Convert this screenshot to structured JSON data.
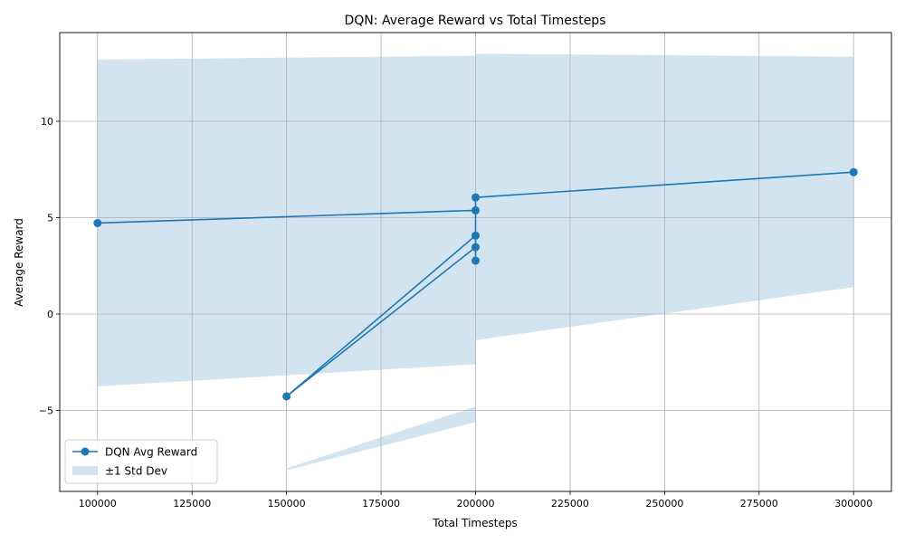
{
  "chart_data": {
    "type": "line",
    "title": "DQN: Average Reward vs Total Timesteps",
    "xlabel": "Total Timesteps",
    "ylabel": "Average Reward",
    "xlim": [
      90000,
      310000
    ],
    "ylim": [
      -9.2,
      14.6
    ],
    "xticks": [
      100000,
      125000,
      150000,
      175000,
      200000,
      225000,
      250000,
      275000,
      300000
    ],
    "yticks": [
      -5,
      0,
      5,
      10
    ],
    "grid": true,
    "legend_position": "bottom-left",
    "colors": {
      "line": "#1f77b4",
      "band": "#1f77b4"
    },
    "series": [
      {
        "name": "DQN Avg Reward",
        "points": [
          {
            "x": 100000,
            "y": 4.72
          },
          {
            "x": 200000,
            "y": 5.38
          },
          {
            "x": 200000,
            "y": 4.07
          },
          {
            "x": 150000,
            "y": -4.27
          },
          {
            "x": 200000,
            "y": 3.47
          },
          {
            "x": 200000,
            "y": 2.77
          },
          {
            "x": 200000,
            "y": 6.05
          },
          {
            "x": 300000,
            "y": 7.36
          }
        ]
      }
    ],
    "band": {
      "name": "±1 Std Dev",
      "segments": [
        {
          "x": [
            100000,
            200000,
            200000
          ],
          "upper": [
            13.2,
            13.4,
            13.4
          ],
          "lower": [
            -3.75,
            -2.6,
            -2.6
          ]
        },
        {
          "x": [
            150000,
            200000,
            200000
          ],
          "upper": [
            -8.0,
            -4.8,
            -4.8
          ],
          "lower": [
            -8.1,
            -5.6,
            -5.6
          ]
        },
        {
          "x": [
            200000,
            200000,
            300000
          ],
          "upper": [
            13.5,
            13.5,
            13.35
          ],
          "lower": [
            -1.35,
            -1.35,
            1.4
          ]
        }
      ]
    },
    "legend": [
      {
        "label": "DQN Avg Reward",
        "kind": "line-marker"
      },
      {
        "label": "±1 Std Dev",
        "kind": "patch"
      }
    ]
  }
}
